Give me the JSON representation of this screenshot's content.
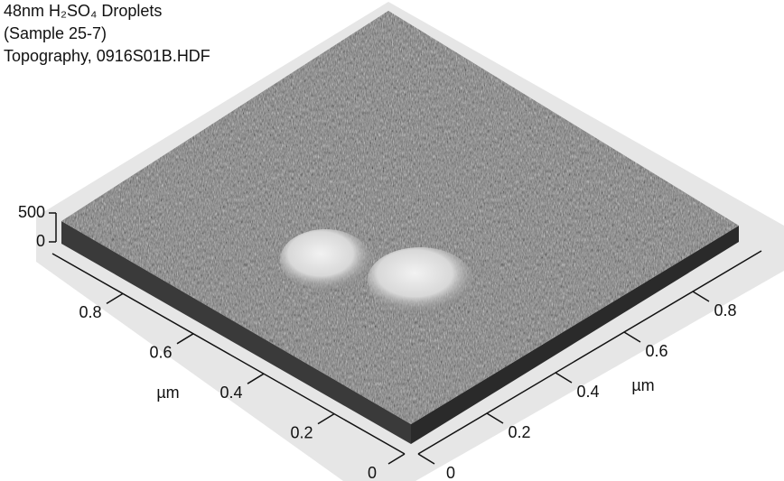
{
  "chart_data": {
    "type": "surface3d",
    "title": [
      "48nm H₂SO₄ Droplets",
      "(Sample 25-7)",
      "Topography, 0916S01B.HDF"
    ],
    "xlabel": "µm",
    "ylabel": "µm",
    "xlim": [
      0,
      1
    ],
    "xticks": [
      0,
      0.2,
      0.4,
      0.6,
      0.8
    ],
    "ylim": [
      0,
      1
    ],
    "yticks": [
      0,
      0.2,
      0.4,
      0.6,
      0.8
    ],
    "zlim": [
      0,
      500
    ],
    "zticks": [
      0,
      500
    ]
  }
}
